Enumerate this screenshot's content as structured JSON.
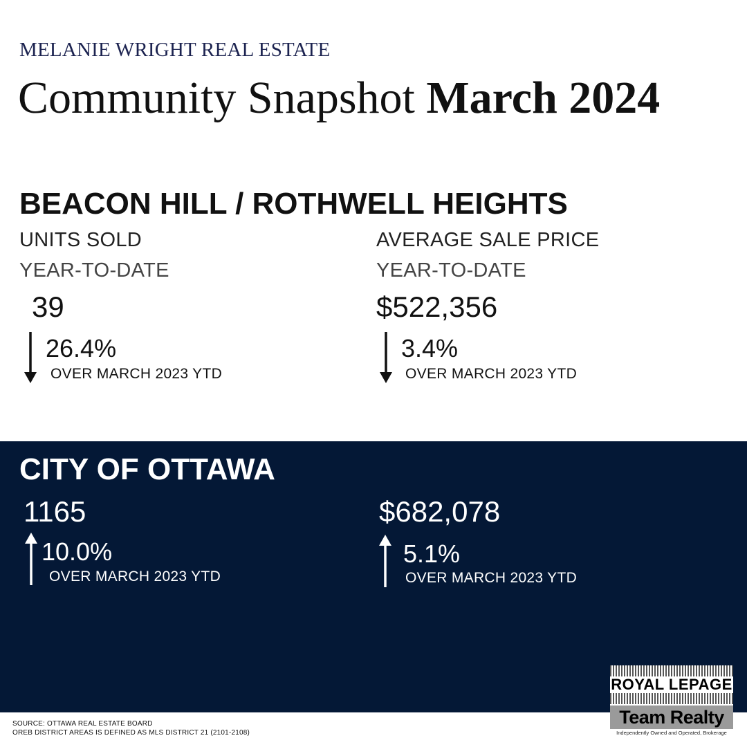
{
  "header": {
    "brand": "MELANIE WRIGHT REAL ESTATE",
    "title_light": "Community Snapshot ",
    "title_bold": "March 2024"
  },
  "local": {
    "name": "BEACON HILL / ROTHWELL HEIGHTS",
    "units": {
      "label": "UNITS SOLD",
      "sublabel": "YEAR-TO-DATE",
      "value": "39",
      "change": "26.4%",
      "direction": "down",
      "note": "OVER MARCH 2023 YTD"
    },
    "price": {
      "label": "AVERAGE SALE PRICE",
      "sublabel": "YEAR-TO-DATE",
      "value": "$522,356",
      "change": "3.4%",
      "direction": "down",
      "note": "OVER MARCH 2023 YTD"
    }
  },
  "city": {
    "name": "CITY OF OTTAWA",
    "units": {
      "value": "1165",
      "change": "10.0%",
      "direction": "up",
      "note": "OVER MARCH 2023 YTD"
    },
    "price": {
      "value": "$682,078",
      "change": "5.1%",
      "direction": "up",
      "note": "OVER MARCH 2023 YTD"
    }
  },
  "footer": {
    "source_line1": "SOURCE: OTTAWA REAL ESTATE BOARD",
    "source_line2": "OREB DISTRICT AREAS IS DEFINED AS MLS DISTRICT 21 (2101-2108)"
  },
  "logo": {
    "line1": "ROYAL LEPAGE",
    "line2": "Team Realty",
    "tagline": "Independently Owned and Operated, Brokerage"
  },
  "colors": {
    "brand_text": "#1c2350",
    "band_background": "#041836",
    "text": "#111111"
  }
}
